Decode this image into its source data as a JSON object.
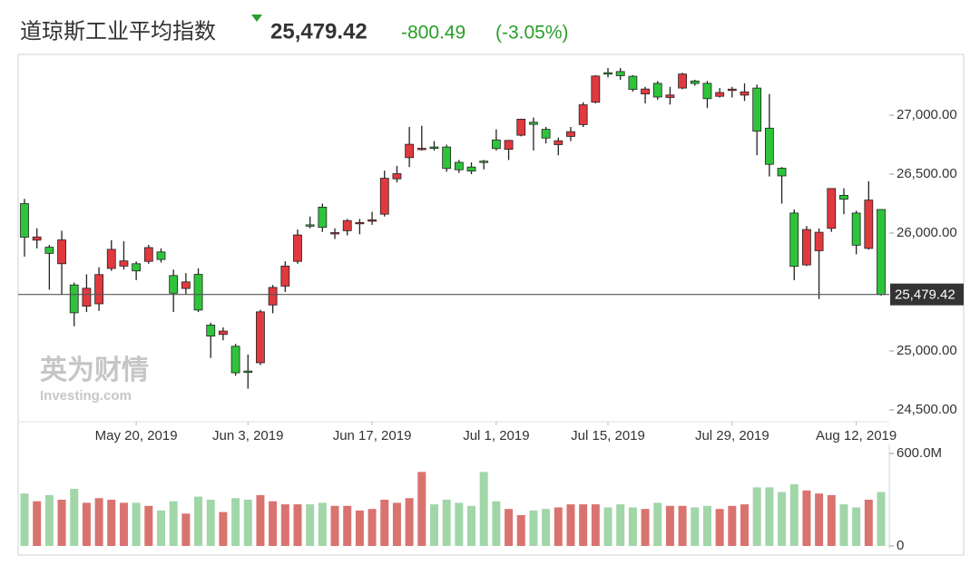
{
  "header": {
    "change": "-800.49",
    "change_pct": "(-3.05%)"
  },
  "chart_data": {
    "type": "candlestick",
    "title": "道琼斯工业平均指数",
    "watermark": [
      "英为财情",
      "Investing.com"
    ],
    "x": [
      "2019-05-07",
      "2019-05-08",
      "2019-05-09",
      "2019-05-10",
      "2019-05-13",
      "2019-05-14",
      "2019-05-15",
      "2019-05-16",
      "2019-05-17",
      "2019-05-20",
      "2019-05-21",
      "2019-05-22",
      "2019-05-23",
      "2019-05-24",
      "2019-05-28",
      "2019-05-29",
      "2019-05-30",
      "2019-05-31",
      "2019-06-03",
      "2019-06-04",
      "2019-06-05",
      "2019-06-06",
      "2019-06-07",
      "2019-06-10",
      "2019-06-11",
      "2019-06-12",
      "2019-06-13",
      "2019-06-14",
      "2019-06-17",
      "2019-06-18",
      "2019-06-19",
      "2019-06-20",
      "2019-06-21",
      "2019-06-24",
      "2019-06-25",
      "2019-06-26",
      "2019-06-27",
      "2019-06-28",
      "2019-07-01",
      "2019-07-02",
      "2019-07-03",
      "2019-07-05",
      "2019-07-08",
      "2019-07-09",
      "2019-07-10",
      "2019-07-11",
      "2019-07-12",
      "2019-07-15",
      "2019-07-16",
      "2019-07-17",
      "2019-07-18",
      "2019-07-19",
      "2019-07-22",
      "2019-07-23",
      "2019-07-24",
      "2019-07-25",
      "2019-07-26",
      "2019-07-29",
      "2019-07-30",
      "2019-07-31",
      "2019-08-01",
      "2019-08-02",
      "2019-08-05",
      "2019-08-06",
      "2019-08-07",
      "2019-08-08",
      "2019-08-09",
      "2019-08-12",
      "2019-08-13",
      "2019-08-14"
    ],
    "open": [
      26250,
      25940,
      25880,
      25740,
      25560,
      25380,
      25400,
      25700,
      25720,
      25740,
      25760,
      25840,
      25640,
      25530,
      25650,
      25220,
      25140,
      25040,
      24830,
      24900,
      25390,
      25550,
      25760,
      26070,
      26220,
      26000,
      26020,
      26080,
      26110,
      26160,
      26460,
      26640,
      26710,
      26730,
      26730,
      26600,
      26560,
      26610,
      26790,
      26710,
      26830,
      26940,
      26880,
      26750,
      26820,
      26920,
      27110,
      27360,
      27370,
      27330,
      27180,
      27270,
      27150,
      27230,
      27290,
      27270,
      27160,
      27210,
      27170,
      27230,
      26890,
      26550,
      26170,
      25730,
      25850,
      26040,
      26320,
      26170,
      25870,
      26200
    ],
    "high": [
      26290,
      26040,
      25900,
      26020,
      25580,
      25650,
      25710,
      25940,
      25930,
      25760,
      25900,
      25870,
      25690,
      25660,
      25700,
      25240,
      25200,
      25060,
      24970,
      25350,
      25560,
      25760,
      26030,
      26140,
      26250,
      26040,
      26120,
      26120,
      26180,
      26530,
      26570,
      26900,
      26910,
      26780,
      26750,
      26620,
      26600,
      26620,
      26880,
      26790,
      26970,
      26980,
      26900,
      26810,
      26900,
      27110,
      27340,
      27400,
      27400,
      27340,
      27240,
      27290,
      27240,
      27360,
      27300,
      27290,
      27230,
      27240,
      27270,
      27260,
      27180,
      26560,
      26200,
      26060,
      26040,
      26380,
      26380,
      26190,
      26440,
      26200
    ],
    "low": [
      25800,
      25870,
      25520,
      25480,
      25210,
      25330,
      25340,
      25680,
      25690,
      25600,
      25740,
      25750,
      25330,
      25480,
      25330,
      24940,
      25090,
      24790,
      24680,
      24880,
      25320,
      25500,
      25740,
      26040,
      26010,
      25950,
      25980,
      25990,
      26070,
      26140,
      26430,
      26560,
      26700,
      26700,
      26520,
      26510,
      26500,
      26540,
      26700,
      26620,
      26820,
      26700,
      26760,
      26660,
      26780,
      26900,
      27100,
      27320,
      27300,
      27200,
      27100,
      27130,
      27090,
      27220,
      27250,
      27060,
      27150,
      27150,
      27120,
      26660,
      26480,
      26250,
      25600,
      25720,
      25440,
      26010,
      26160,
      25820,
      25860,
      25470
    ],
    "close": [
      25965,
      25967,
      25828,
      25942,
      25324,
      25532,
      25648,
      25862,
      25764,
      25679,
      25877,
      25776,
      25490,
      25586,
      25347,
      25126,
      25169,
      24815,
      24819,
      25332,
      25539,
      25720,
      25984,
      26062,
      26048,
      26004,
      26106,
      26090,
      26112,
      26465,
      26504,
      26753,
      26719,
      26727,
      26548,
      26537,
      26526,
      26600,
      26717,
      26786,
      26966,
      26922,
      26806,
      26783,
      26860,
      27088,
      27332,
      27359,
      27335,
      27219,
      27222,
      27154,
      27171,
      27349,
      27269,
      27140,
      27192,
      27221,
      27198,
      26864,
      26583,
      26485,
      25718,
      26030,
      26007,
      26378,
      26287,
      25897,
      26280,
      25479
    ],
    "volume": [
      340000000,
      290000000,
      330000000,
      300000000,
      370000000,
      280000000,
      310000000,
      300000000,
      280000000,
      280000000,
      260000000,
      230000000,
      290000000,
      210000000,
      320000000,
      300000000,
      220000000,
      310000000,
      300000000,
      330000000,
      290000000,
      270000000,
      270000000,
      270000000,
      280000000,
      260000000,
      260000000,
      230000000,
      240000000,
      300000000,
      280000000,
      310000000,
      480000000,
      270000000,
      300000000,
      280000000,
      260000000,
      480000000,
      290000000,
      240000000,
      200000000,
      230000000,
      240000000,
      250000000,
      270000000,
      270000000,
      270000000,
      250000000,
      270000000,
      250000000,
      240000000,
      280000000,
      260000000,
      260000000,
      250000000,
      260000000,
      240000000,
      260000000,
      270000000,
      380000000,
      380000000,
      350000000,
      400000000,
      360000000,
      340000000,
      330000000,
      270000000,
      250000000,
      300000000,
      350000000
    ],
    "up_color": "#e0393e",
    "down_color": "#2ec43a",
    "volume_up_color": "#d9736f",
    "volume_down_color": "#a1d6a9",
    "ylim": [
      24400,
      27500
    ],
    "yticks": [
      {
        "value": 24500,
        "label": "24,500.00"
      },
      {
        "value": 25000,
        "label": "25,000.00"
      },
      {
        "value": 26000,
        "label": "26,000.00"
      },
      {
        "value": 26500,
        "label": "26,500.00"
      },
      {
        "value": 27000,
        "label": "27,000.00"
      }
    ],
    "xticks": [
      {
        "value": "2019-05-20",
        "label": "May 20, 2019"
      },
      {
        "value": "2019-06-03",
        "label": "Jun 3, 2019"
      },
      {
        "value": "2019-06-17",
        "label": "Jun 17, 2019"
      },
      {
        "value": "2019-07-01",
        "label": "Jul 1, 2019"
      },
      {
        "value": "2019-07-15",
        "label": "Jul 15, 2019"
      },
      {
        "value": "2019-07-29",
        "label": "Jul 29, 2019"
      },
      {
        "value": "2019-08-12",
        "label": "Aug 12, 2019"
      }
    ],
    "volume_ylim": [
      0,
      600000000
    ],
    "volume_yticks": [
      {
        "value": 600000000,
        "label": "600.0M"
      },
      {
        "value": 0,
        "label": "0"
      }
    ],
    "last": {
      "value": 25479.42,
      "label": "25,479.42"
    }
  }
}
